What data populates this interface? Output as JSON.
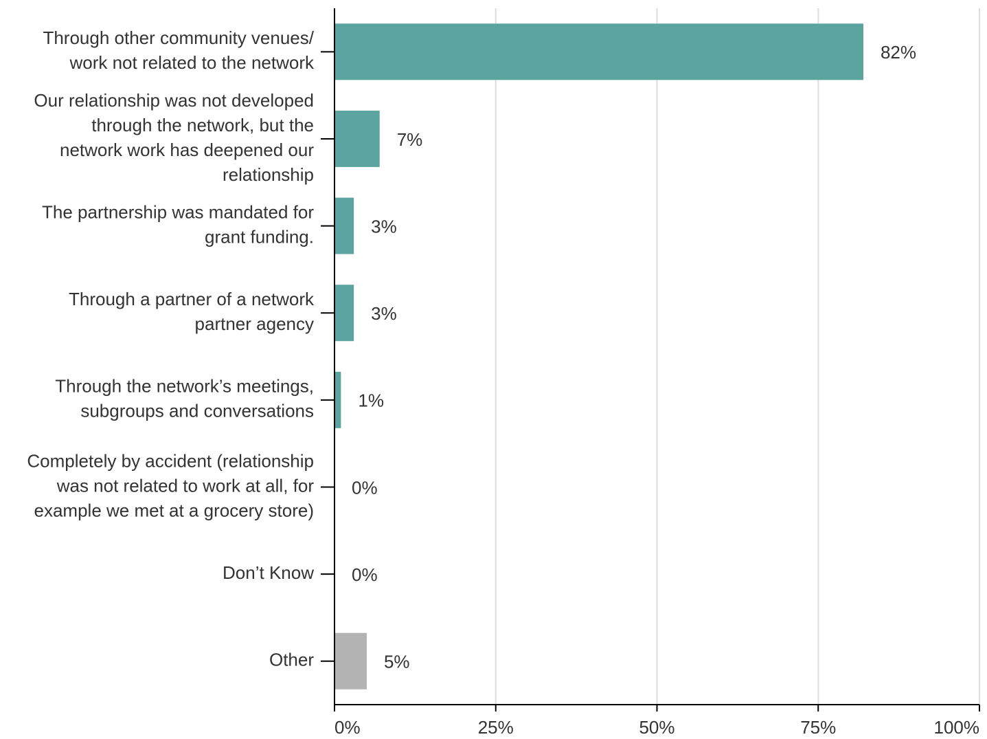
{
  "chart_data": {
    "type": "bar",
    "orientation": "horizontal",
    "categories": [
      [
        "Through other community venues/",
        "work not related to the network"
      ],
      [
        "Our relationship was not developed",
        "through the network, but the",
        "network work has deepened our",
        "relationship"
      ],
      [
        "The partnership was mandated for",
        "grant funding."
      ],
      [
        "Through a partner of a network",
        "partner agency"
      ],
      [
        "Through the network’s meetings,",
        "subgroups and conversations"
      ],
      [
        "Completely by accident (relationship",
        "was not related to work at all, for",
        "example we met at a grocery store)"
      ],
      [
        "Don’t Know"
      ],
      [
        "Other"
      ]
    ],
    "values": [
      82,
      7,
      3,
      3,
      1,
      0,
      0,
      5
    ],
    "value_labels": [
      "82%",
      "7%",
      "3%",
      "3%",
      "1%",
      "0%",
      "0%",
      "5%"
    ],
    "colors": [
      "#5ba4a0",
      "#5ba4a0",
      "#5ba4a0",
      "#5ba4a0",
      "#5ba4a0",
      "#5ba4a0",
      "#5ba4a0",
      "#b3b3b3"
    ],
    "xlim": [
      0,
      100
    ],
    "xticks": [
      {
        "value": 0,
        "label": "0%"
      },
      {
        "value": 25,
        "label": "25%"
      },
      {
        "value": 50,
        "label": "50%"
      },
      {
        "value": 75,
        "label": "75%"
      },
      {
        "value": 100,
        "label": "100%"
      }
    ],
    "grid": true
  }
}
